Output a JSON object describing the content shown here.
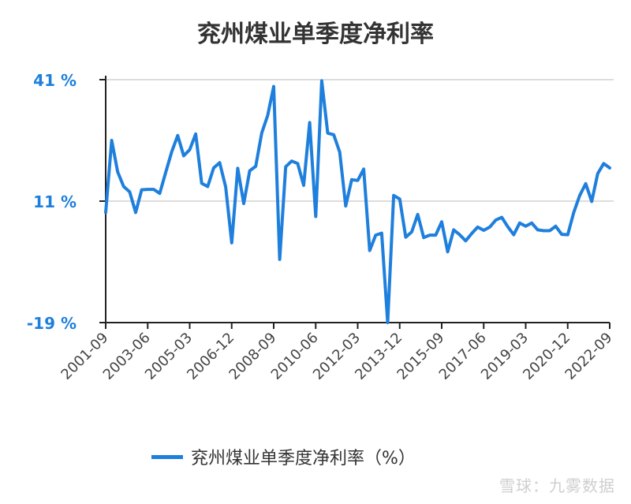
{
  "title": "兖州煤业单季度净利率",
  "watermark": "雪球：九雾数据",
  "colors": {
    "line": "#1e7fdc",
    "axis": "#222222",
    "grid": "#dddddd"
  },
  "chart_data": {
    "type": "line",
    "title": "兖州煤业单季度净利率",
    "xlabel": "",
    "ylabel": "",
    "ylim": [
      -19,
      41
    ],
    "yticks": [
      -19,
      11,
      41
    ],
    "ytick_labels": [
      "-19 %",
      "11 %",
      "41 %"
    ],
    "xtick_labels": [
      "2001-09",
      "2003-06",
      "2005-03",
      "2006-12",
      "2008-09",
      "2010-06",
      "2012-03",
      "2013-12",
      "2015-09",
      "2017-06",
      "2019-03",
      "2020-12",
      "2022-09"
    ],
    "x_start": "2001-09",
    "x_end": "2022-09",
    "grid": true,
    "legend_position": "bottom",
    "series": [
      {
        "name": "兖州煤业单季度净利率（%）",
        "values": [
          8.2,
          26.0,
          18.2,
          14.6,
          13.3,
          8.2,
          13.8,
          13.9,
          13.9,
          12.9,
          18.1,
          23.2,
          27.2,
          22.2,
          23.7,
          27.6,
          15.4,
          14.6,
          19.2,
          20.5,
          14.5,
          0.7,
          19.1,
          10.4,
          18.5,
          19.6,
          27.8,
          32.2,
          39.3,
          -3.4,
          19.5,
          20.9,
          20.3,
          14.9,
          30.4,
          7.2,
          40.7,
          27.8,
          27.4,
          23.1,
          9.8,
          16.3,
          16.1,
          18.9,
          -1.2,
          2.6,
          3.1,
          -20.0,
          12.4,
          11.5,
          2.1,
          3.4,
          7.7,
          2.0,
          2.6,
          2.6,
          5.9,
          -1.5,
          3.9,
          2.7,
          1.2,
          3.0,
          4.6,
          3.8,
          4.6,
          6.3,
          7.0,
          4.7,
          2.7,
          5.6,
          4.8,
          5.6,
          3.9,
          3.7,
          3.7,
          4.8,
          2.8,
          2.7,
          8.2,
          12.4,
          15.3,
          10.9,
          17.8,
          20.3,
          19.2
        ]
      }
    ]
  }
}
